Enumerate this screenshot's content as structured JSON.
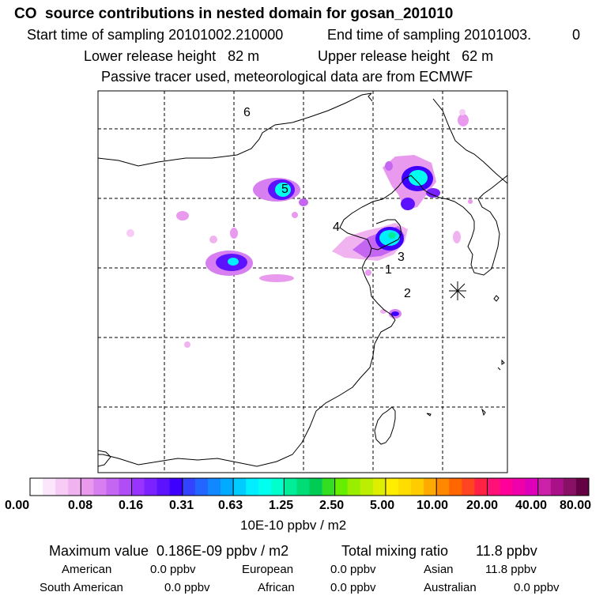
{
  "header": {
    "title": "CO  source contributions in nested domain for gosan_201010",
    "start_label": "Start time of sampling 20101002.210000",
    "end_label": "End time of sampling 20101003.",
    "end_suffix": "0",
    "lower_release": "Lower release height   82 m",
    "upper_release": "Upper release height   62 m",
    "tracer_note": "Passive tracer used, meteorological data are from ECMWF"
  },
  "map": {
    "region_labels": [
      "1",
      "2",
      "3",
      "4",
      "5",
      "6"
    ],
    "receptor_marker": "asterisk-icon"
  },
  "colorbar": {
    "colors": [
      "#ffffff",
      "#fbe6fb",
      "#f6ccf6",
      "#f0b3f0",
      "#e999ee",
      "#d77ff0",
      "#c466f2",
      "#b14df4",
      "#9933ff",
      "#7a22ff",
      "#5c11ff",
      "#3d00ff",
      "#3344ff",
      "#2266ff",
      "#1188ff",
      "#00aaff",
      "#00ccff",
      "#00eeff",
      "#00ffee",
      "#00ffcc",
      "#00ee99",
      "#00dd77",
      "#00cc55",
      "#33dd22",
      "#66ee00",
      "#99ee00",
      "#bbee00",
      "#ddee00",
      "#ffee00",
      "#ffdd00",
      "#ffcc00",
      "#ffaa00",
      "#ff8800",
      "#ff6600",
      "#ff4422",
      "#ff2244",
      "#ff1177",
      "#ff0099",
      "#ee00aa",
      "#dd00bb",
      "#cc22aa",
      "#aa1188",
      "#881166",
      "#660044"
    ],
    "ticks": [
      "0.00",
      "0.08",
      "0.16",
      "0.31",
      "0.63",
      "1.25",
      "2.50",
      "5.00",
      "10.00",
      "20.00",
      "40.00",
      "80.00"
    ],
    "units": "10E-10 ppbv / m2"
  },
  "stats": {
    "max_value": "Maximum value  0.186E-09 ppbv / m2",
    "total_mixing": "Total mixing ratio       11.8 ppbv",
    "american_label": "American",
    "american_value": "0.0 ppbv",
    "european_label": "European",
    "european_value": "0.0 ppbv",
    "asian_label": "Asian",
    "asian_value": "11.8 ppbv",
    "south_american_label": "South American",
    "south_american_value": "0.0 ppbv",
    "african_label": "African",
    "african_value": "0.0 ppbv",
    "australian_label": "Australian",
    "australian_value": "0.0 ppbv"
  }
}
